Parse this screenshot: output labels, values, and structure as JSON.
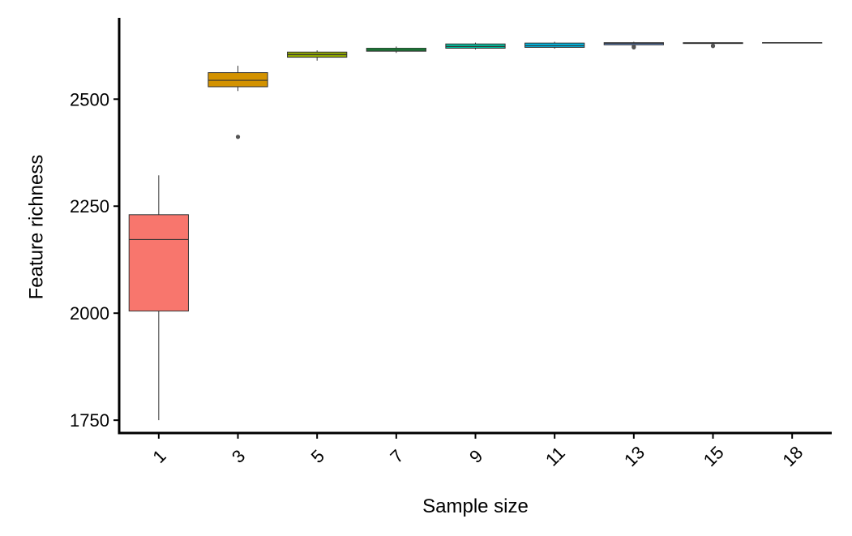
{
  "chart_data": {
    "type": "box",
    "xlabel": "Sample size",
    "ylabel": "Feature richness",
    "ylim": [
      1720,
      2690
    ],
    "y_ticks": [
      1750,
      2000,
      2250,
      2500
    ],
    "grid": false,
    "legend": "none",
    "categories": [
      "1",
      "3",
      "5",
      "7",
      "9",
      "11",
      "13",
      "15",
      "18"
    ],
    "boxes": [
      {
        "label": "1",
        "color": "#F8766D",
        "whisker_low": 1750,
        "q1": 2005,
        "median": 2172,
        "q3": 2230,
        "whisker_high": 2322,
        "outliers": []
      },
      {
        "label": "3",
        "color": "#D39200",
        "whisker_low": 2519,
        "q1": 2529,
        "median": 2544,
        "q3": 2562,
        "whisker_high": 2578,
        "outliers": [
          2412
        ]
      },
      {
        "label": "5",
        "color": "#93AA00",
        "whisker_low": 2590,
        "q1": 2598,
        "median": 2604,
        "q3": 2610,
        "whisker_high": 2614,
        "outliers": []
      },
      {
        "label": "7",
        "color": "#00BA38",
        "whisker_low": 2608,
        "q1": 2612,
        "median": 2615,
        "q3": 2619,
        "whisker_high": 2623,
        "outliers": []
      },
      {
        "label": "9",
        "color": "#00C19F",
        "whisker_low": 2616,
        "q1": 2619,
        "median": 2623,
        "q3": 2629,
        "whisker_high": 2632,
        "outliers": []
      },
      {
        "label": "11",
        "color": "#00B9E3",
        "whisker_low": 2618,
        "q1": 2621,
        "median": 2625,
        "q3": 2631,
        "whisker_high": 2634,
        "outliers": []
      },
      {
        "label": "13",
        "color": "#619CFF",
        "whisker_low": 2626,
        "q1": 2627,
        "median": 2630,
        "q3": 2632,
        "whisker_high": 2634,
        "outliers": [
          2621,
          2623
        ]
      },
      {
        "label": "15",
        "color": "#DB72FB",
        "whisker_low": 2629,
        "q1": 2630,
        "median": 2631,
        "q3": 2632,
        "whisker_high": 2633,
        "outliers": [
          2624,
          2625
        ]
      },
      {
        "label": "18",
        "color": "#FF61C3",
        "whisker_low": 2632,
        "q1": 2632,
        "median": 2632,
        "q3": 2632,
        "whisker_high": 2632,
        "outliers": []
      }
    ]
  }
}
